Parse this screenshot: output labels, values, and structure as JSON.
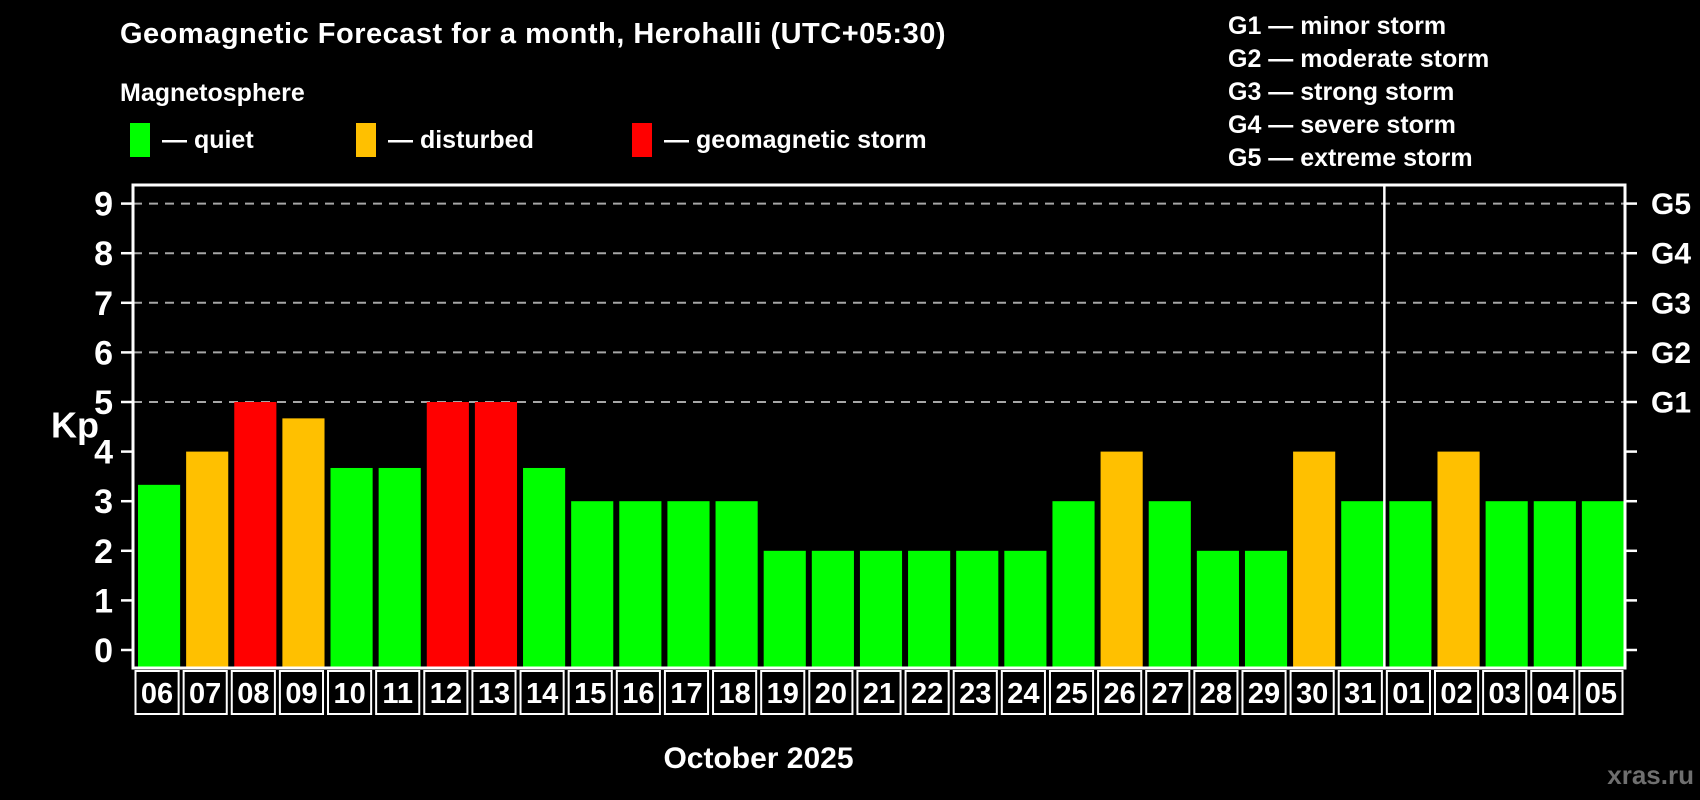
{
  "header": {
    "title": "Geomagnetic Forecast for a month, Herohalli (UTC+05:30)",
    "subtitle": "Magnetosphere"
  },
  "legend": [
    {
      "key": "quiet",
      "label": "— quiet",
      "color": "#00ff00"
    },
    {
      "key": "disturbed",
      "label": "— disturbed",
      "color": "#ffc000"
    },
    {
      "key": "storm",
      "label": "— geomagnetic storm",
      "color": "#ff0000"
    }
  ],
  "storm_scale_legend": [
    "G1 — minor storm",
    "G2 — moderate storm",
    "G3 — strong storm",
    "G4 — severe storm",
    "G5 — extreme storm"
  ],
  "watermark": "xras.ru",
  "chart_data": {
    "type": "bar",
    "title": "Geomagnetic Forecast for a month, Herohalli (UTC+05:30)",
    "subtitle": "Magnetosphere",
    "xlabel": "October 2025",
    "ylabel": "Kp",
    "ylim": [
      0,
      9
    ],
    "grid": "dashed horizontal lines at Kp 5-9",
    "grid_dashed_at_kp": [
      5,
      6,
      7,
      8,
      9
    ],
    "legend_position": "top-left",
    "right_axis": [
      {
        "label": "G1",
        "kp": 5
      },
      {
        "label": "G2",
        "kp": 6
      },
      {
        "label": "G3",
        "kp": 7
      },
      {
        "label": "G4",
        "kp": 8
      },
      {
        "label": "G5",
        "kp": 9
      }
    ],
    "categories": [
      "06",
      "07",
      "08",
      "09",
      "10",
      "11",
      "12",
      "13",
      "14",
      "15",
      "16",
      "17",
      "18",
      "19",
      "20",
      "21",
      "22",
      "23",
      "24",
      "25",
      "26",
      "27",
      "28",
      "29",
      "30",
      "31",
      "01",
      "02",
      "03",
      "04",
      "05"
    ],
    "values": [
      3.33,
      4,
      5,
      4.67,
      3.67,
      3.67,
      5,
      5,
      3.67,
      3,
      3,
      3,
      3,
      2,
      2,
      2,
      2,
      2,
      2,
      3,
      4,
      3,
      2,
      2,
      4,
      3,
      3,
      4,
      3,
      3,
      3
    ],
    "statuses": [
      "quiet",
      "disturbed",
      "storm",
      "disturbed",
      "quiet",
      "quiet",
      "storm",
      "storm",
      "quiet",
      "quiet",
      "quiet",
      "quiet",
      "quiet",
      "quiet",
      "quiet",
      "quiet",
      "quiet",
      "quiet",
      "quiet",
      "quiet",
      "disturbed",
      "quiet",
      "quiet",
      "quiet",
      "disturbed",
      "quiet",
      "quiet",
      "disturbed",
      "quiet",
      "quiet",
      "quiet"
    ],
    "status_colors": {
      "quiet": "#00ff00",
      "disturbed": "#ffc000",
      "storm": "#ff0000"
    },
    "month_boundary_after_index": 25
  }
}
